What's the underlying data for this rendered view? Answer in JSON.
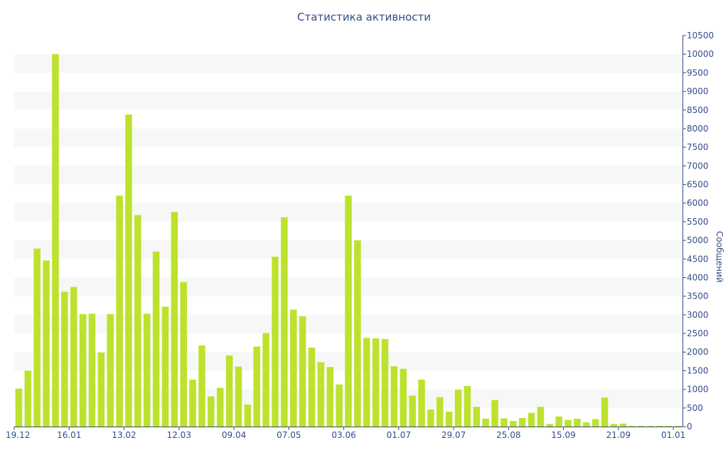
{
  "chart_data": {
    "type": "bar",
    "title": "Статистика активности",
    "xlabel": "",
    "ylabel": "Сообщений",
    "ylim": [
      0,
      10500
    ],
    "ytick_step": 500,
    "y_axis_side": "right",
    "grid": "alternating horizontal bands",
    "colors": {
      "bar": "#bde22d",
      "band": "#f7f7f7",
      "text": "#334c86",
      "axis": "#334c86"
    },
    "x_tick_labels": [
      "19.12",
      "16.01",
      "13.02",
      "12.03",
      "09.04",
      "07.05",
      "03.06",
      "01.07",
      "29.07",
      "25.08",
      "15.09",
      "21.09",
      "01.01"
    ],
    "x_tick_slot_positions": [
      0,
      6,
      12,
      18,
      24,
      30,
      36,
      42,
      48,
      54,
      60,
      66,
      72
    ],
    "values": [
      1020,
      1500,
      4780,
      4460,
      10000,
      3620,
      3750,
      3020,
      3030,
      1990,
      3020,
      6200,
      8380,
      5680,
      3030,
      4700,
      3220,
      5760,
      3880,
      1260,
      2180,
      810,
      1040,
      1910,
      1610,
      590,
      2150,
      2510,
      4560,
      5620,
      3140,
      2960,
      2120,
      1730,
      1600,
      1130,
      6200,
      5000,
      2380,
      2370,
      2350,
      1620,
      1550,
      830,
      1260,
      460,
      790,
      400,
      990,
      1090,
      530,
      210,
      710,
      220,
      150,
      230,
      370,
      530,
      70,
      270,
      180,
      210,
      110,
      200,
      780,
      70,
      80,
      20,
      20,
      20,
      20,
      20,
      20
    ]
  }
}
